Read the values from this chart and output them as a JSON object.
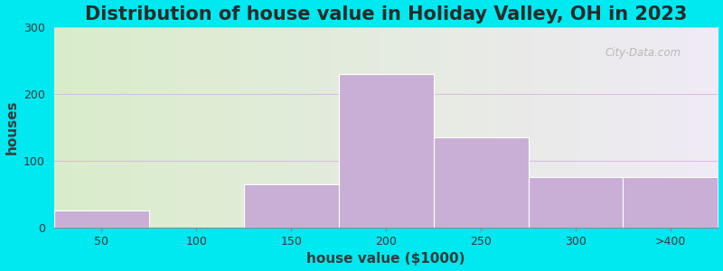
{
  "title": "Distribution of house value in Holiday Valley, OH in 2023",
  "xlabel": "house value ($1000)",
  "ylabel": "houses",
  "categories": [
    "50",
    "100",
    "150",
    "200",
    "250",
    "300",
    ">400"
  ],
  "values": [
    25,
    0,
    65,
    230,
    135,
    75,
    75
  ],
  "bar_color": "#c9aed6",
  "ylim": [
    0,
    300
  ],
  "yticks": [
    0,
    100,
    200,
    300
  ],
  "background_outer": "#00e8f0",
  "background_inner_left": "#d9edca",
  "background_inner_right": "#f0eaf5",
  "title_fontsize": 15,
  "axis_label_fontsize": 11,
  "tick_fontsize": 9,
  "watermark": "City-Data.com",
  "bar_lefts": [
    0,
    1,
    2,
    3,
    4,
    5,
    6
  ],
  "bar_widths": [
    1,
    1,
    1,
    1,
    1,
    1,
    1
  ]
}
